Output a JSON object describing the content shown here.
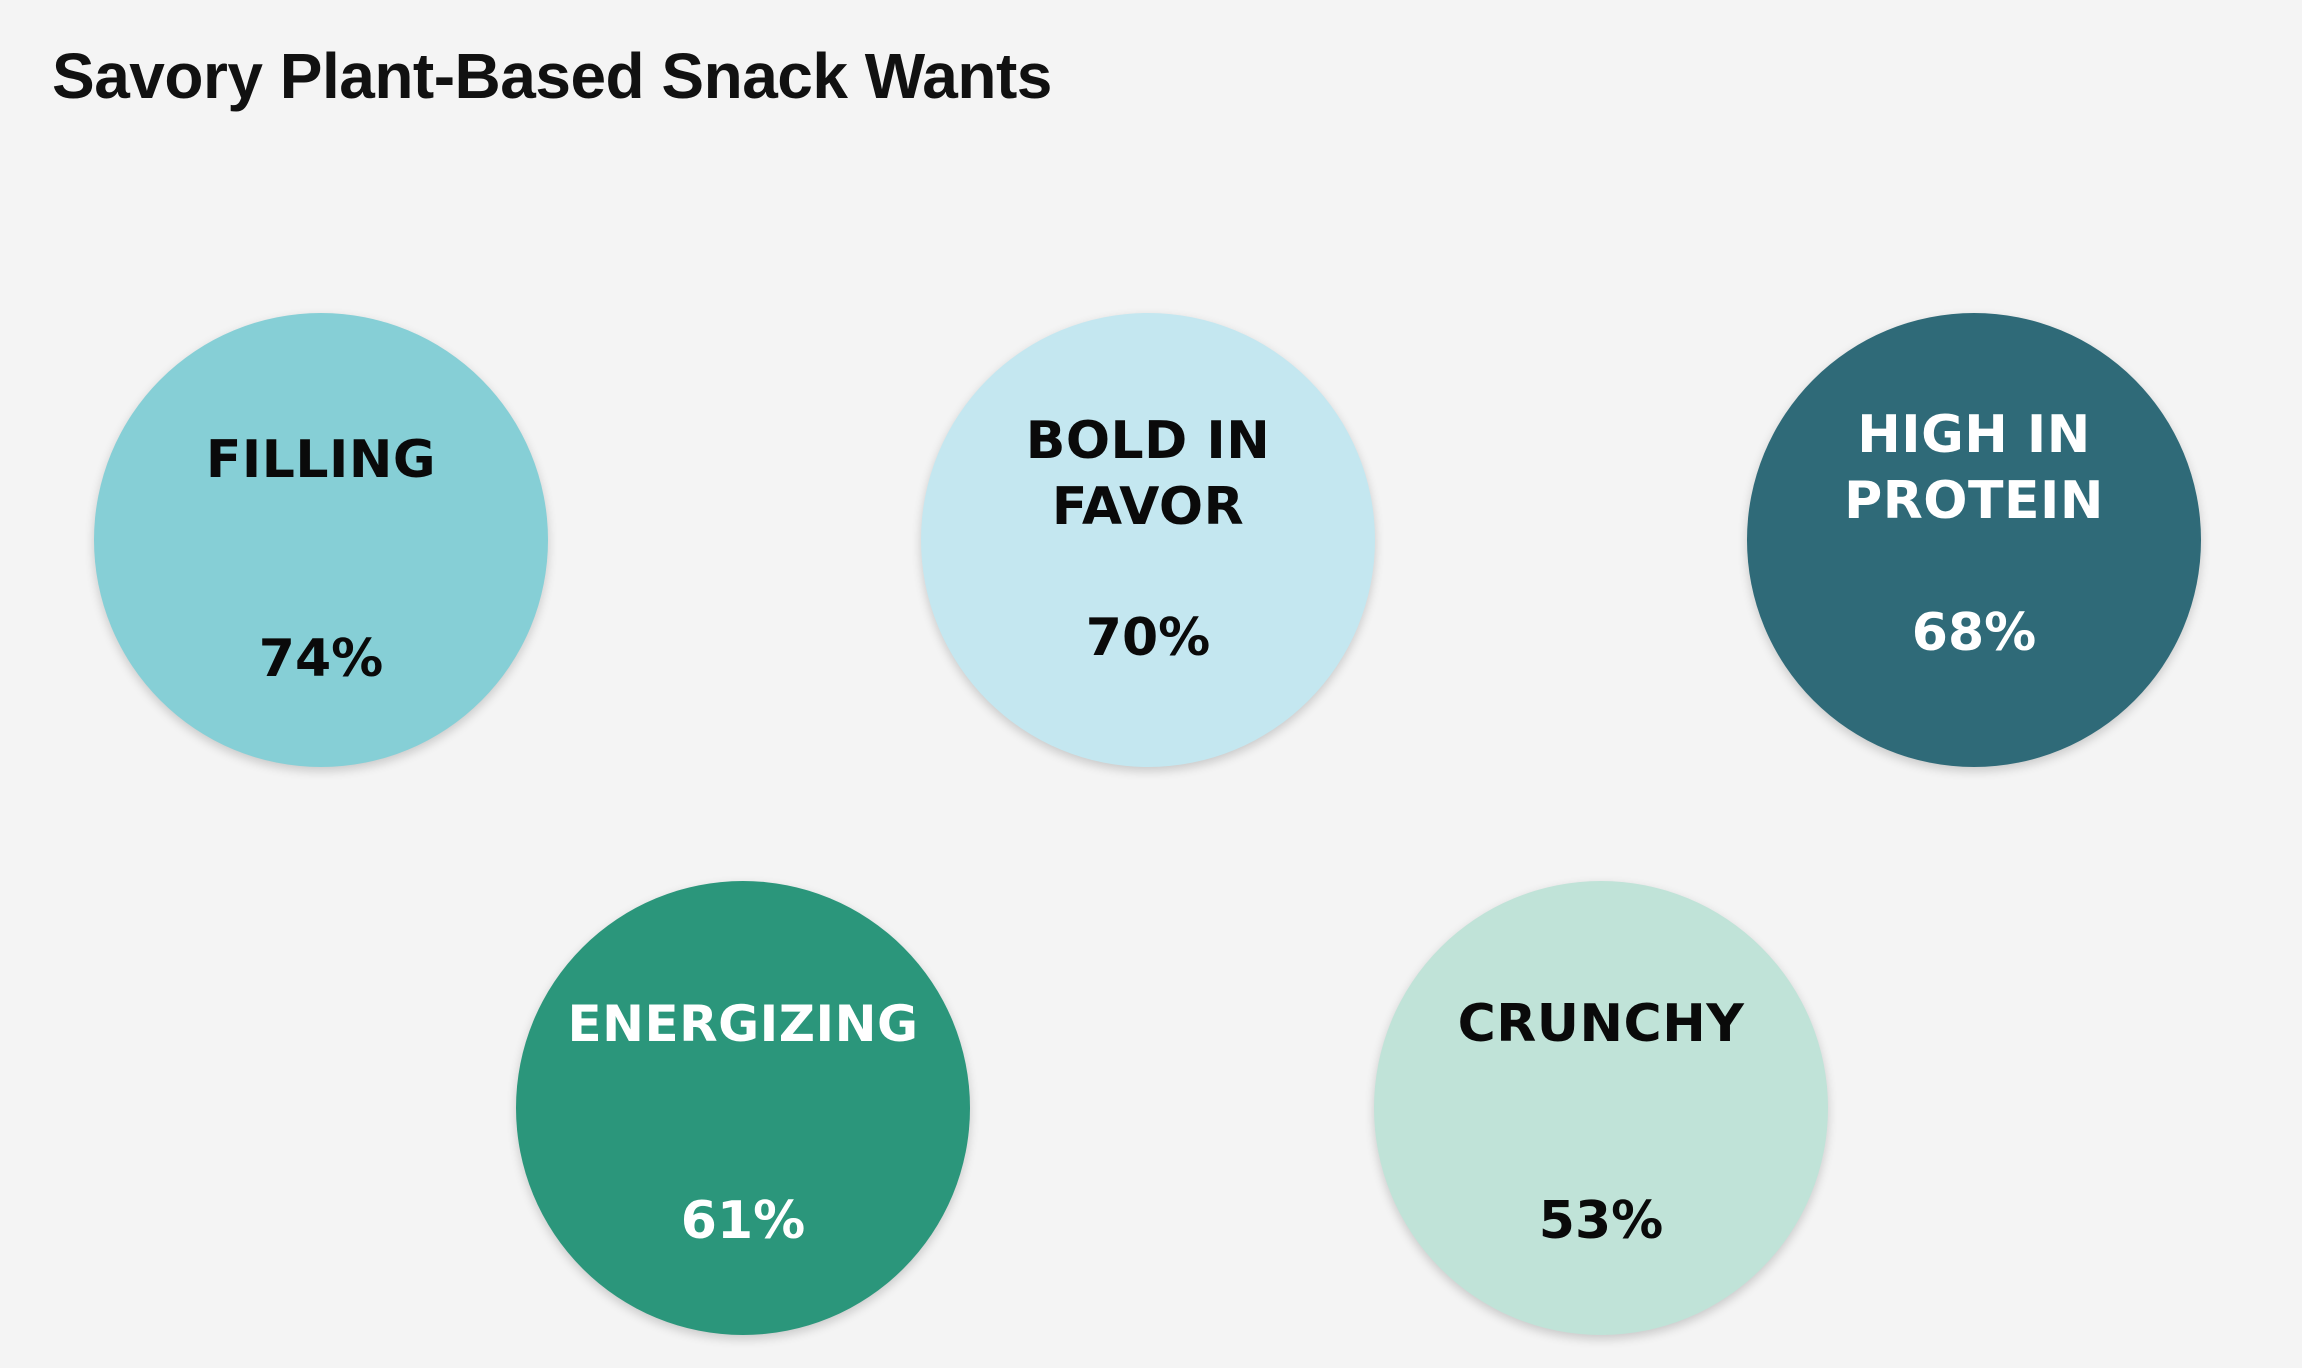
{
  "chart_data": {
    "type": "bubble",
    "title": "Savory Plant-Based Snack Wants",
    "unit": "%",
    "items": [
      {
        "label": "FILLING",
        "value": 74,
        "display": "74%",
        "fill": "#86cfd6",
        "text_color": "#0a0a0a"
      },
      {
        "label": "BOLD IN FAVOR",
        "value": 70,
        "display": "70%",
        "fill": "#c4e7f0",
        "text_color": "#0a0a0a"
      },
      {
        "label": "HIGH IN PROTEIN",
        "value": 68,
        "display": "68%",
        "fill": "#2f6a78",
        "text_color": "#ffffff"
      },
      {
        "label": "ENERGIZING",
        "value": 61,
        "display": "61%",
        "fill": "#2b967b",
        "text_color": "#ffffff"
      },
      {
        "label": "CRUNCHY",
        "value": 53,
        "display": "53%",
        "fill": "#c0e3d8",
        "text_color": "#0a0a0a"
      }
    ]
  }
}
